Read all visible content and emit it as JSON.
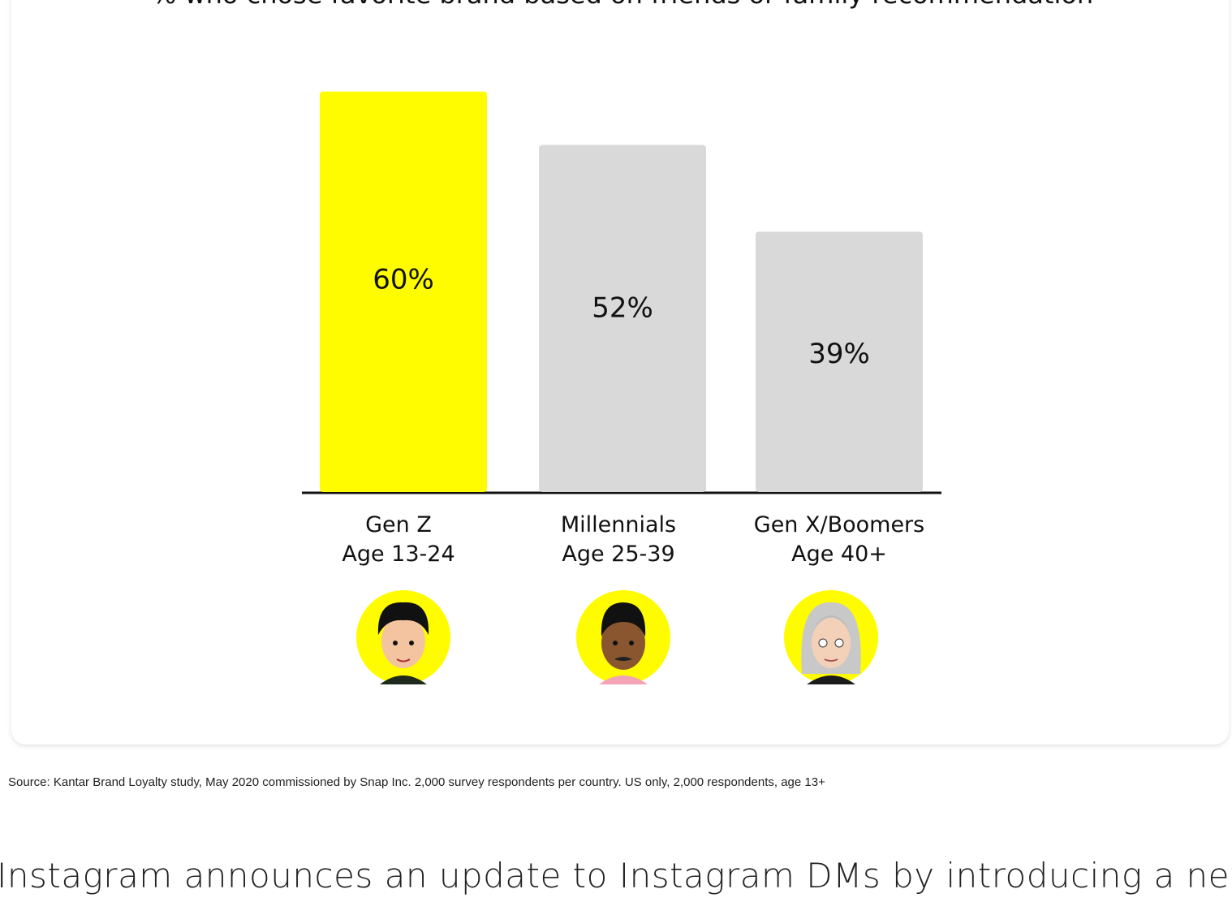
{
  "chart_data": {
    "type": "bar",
    "title": "% who chose favorite brand based on friends or family recommendation",
    "categories": [
      [
        "Gen Z",
        "Age 13-24"
      ],
      [
        "Millennials",
        "Age 25-39"
      ],
      [
        "Gen X/Boomers",
        "Age 40+"
      ]
    ],
    "values": [
      60,
      52,
      39
    ],
    "value_labels": [
      "60%",
      "52%",
      "39%"
    ],
    "colors": [
      "#fffc00",
      "#d9d9d9",
      "#d9d9d9"
    ]
  },
  "source": "Source: Kantar Brand Loyalty study, May 2020 commissioned by Snap Inc. 2,000 survey respondents per country. US only, 2,000 respondents, age 13+",
  "article_text": "Instagram announces an update to Instagram DMs by introducing a new"
}
